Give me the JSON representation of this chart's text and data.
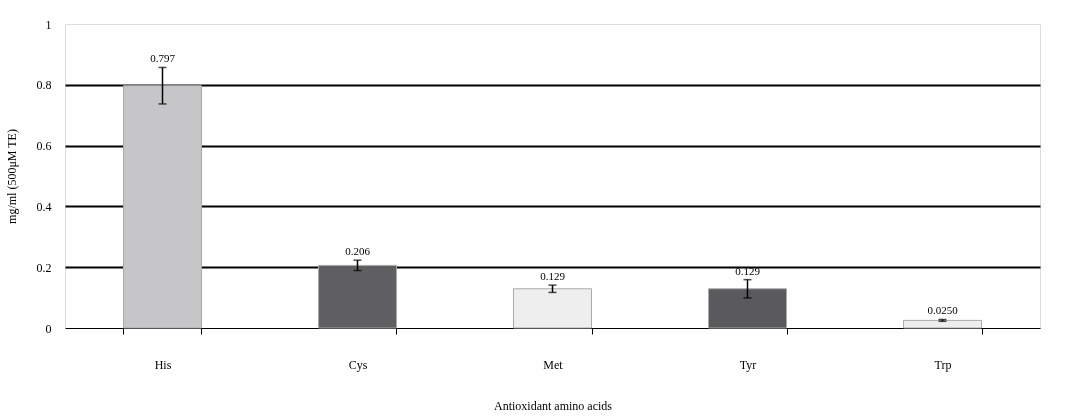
{
  "chart_data": {
    "type": "bar",
    "xlabel": "Antioxidant amino acids",
    "ylabel": "mg/ml (500μM TE)",
    "categories": [
      "His",
      "Cys",
      "Met",
      "Tyr",
      "Trp"
    ],
    "values": [
      0.797,
      0.206,
      0.129,
      0.129,
      0.025
    ],
    "value_labels": [
      "0.797",
      "0.206",
      "0.129",
      "0.129",
      "0.0250"
    ],
    "errors": [
      0.06,
      0.017,
      0.012,
      0.03,
      0.003
    ],
    "colors": [
      "#c6c6c8",
      "#5f5f61",
      "#eeeeee",
      "#5a5a5c",
      "#eeeeee"
    ],
    "ylim": [
      0,
      1
    ],
    "yticks": [
      0,
      0.2,
      0.4,
      0.6,
      0.8,
      1
    ],
    "grid": "y"
  }
}
